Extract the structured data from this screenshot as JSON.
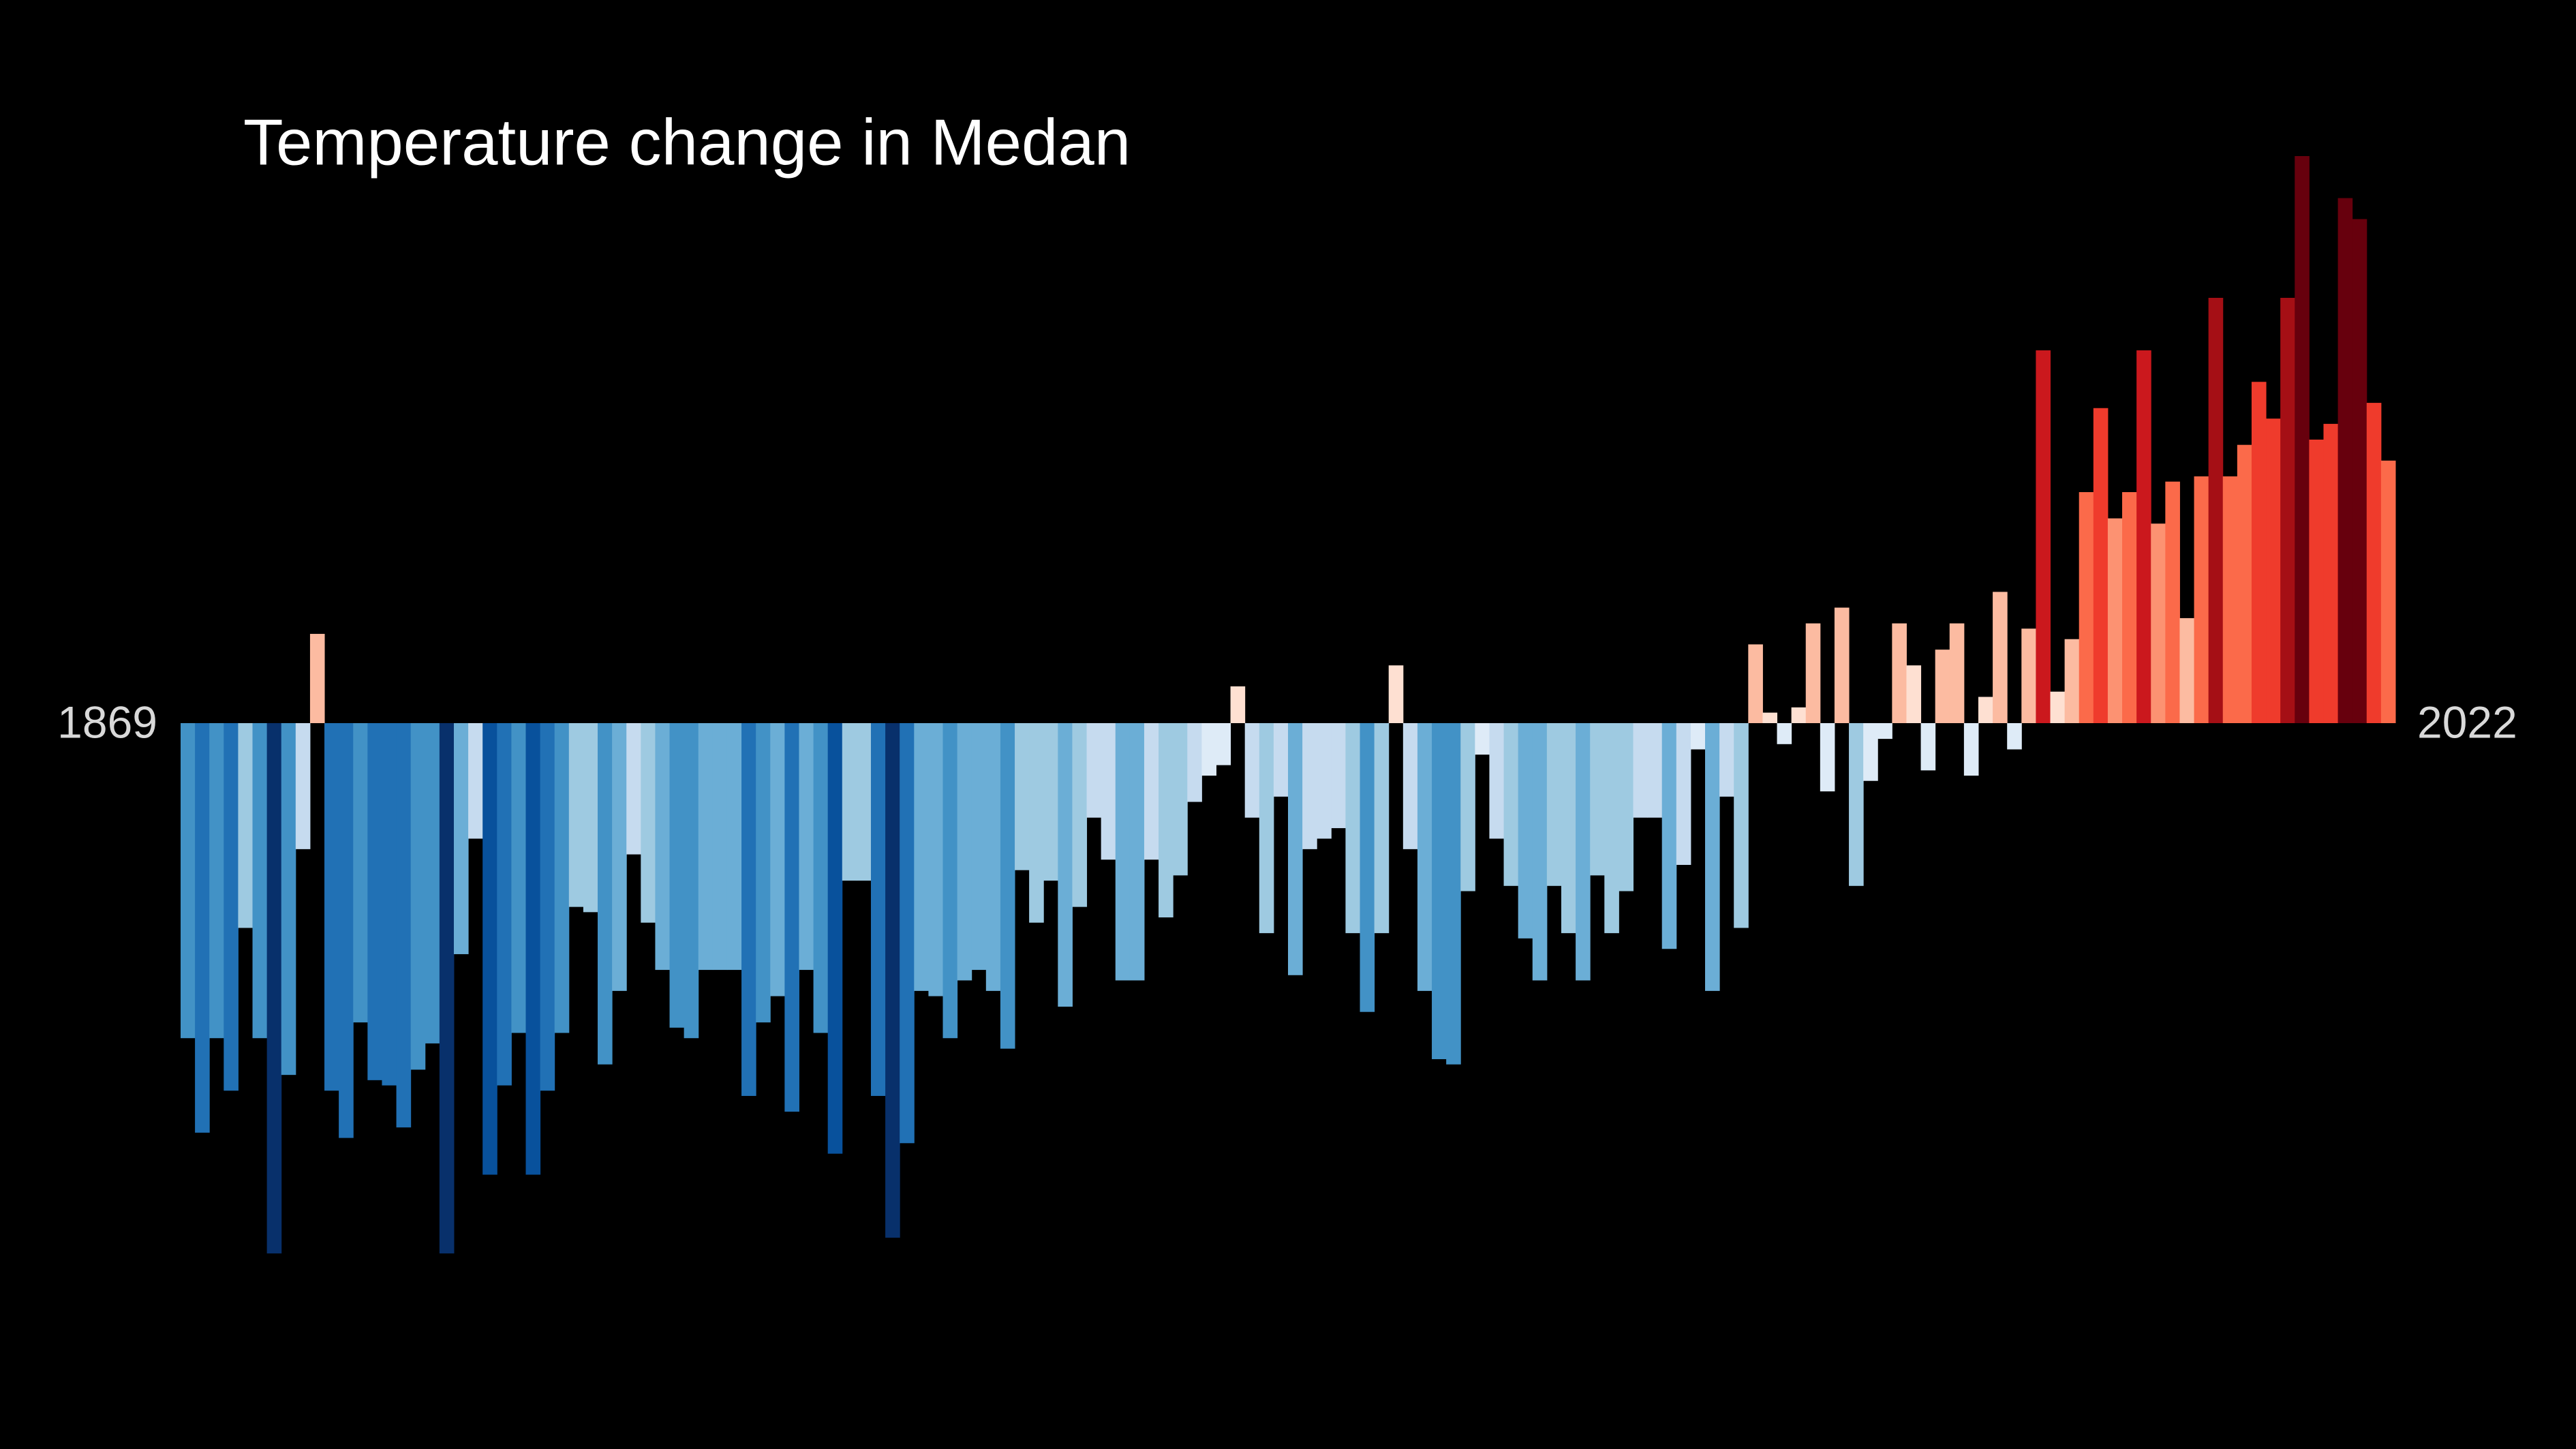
{
  "chart_data": {
    "type": "bar",
    "title": "Temperature change in Medan",
    "categories": [
      "1869",
      null,
      null,
      null,
      null,
      null,
      null,
      null,
      null,
      null,
      null,
      null,
      null,
      null,
      null,
      null,
      null,
      null,
      null,
      null,
      null,
      null,
      null,
      null,
      null,
      null,
      null,
      null,
      null,
      null,
      null,
      null,
      null,
      null,
      null,
      null,
      null,
      null,
      null,
      null,
      null,
      null,
      null,
      null,
      null,
      null,
      null,
      null,
      null,
      null,
      null,
      null,
      null,
      null,
      null,
      null,
      null,
      null,
      null,
      null,
      null,
      null,
      null,
      null,
      null,
      null,
      null,
      null,
      null,
      null,
      null,
      null,
      null,
      null,
      null,
      null,
      null,
      null,
      null,
      null,
      null,
      null,
      null,
      null,
      null,
      null,
      null,
      null,
      null,
      null,
      null,
      null,
      null,
      null,
      null,
      null,
      null,
      null,
      null,
      null,
      null,
      null,
      null,
      null,
      null,
      null,
      null,
      null,
      null,
      null,
      null,
      null,
      null,
      null,
      null,
      null,
      null,
      null,
      null,
      null,
      null,
      null,
      null,
      null,
      null,
      null,
      null,
      null,
      null,
      null,
      null,
      null,
      null,
      null,
      null,
      null,
      null,
      null,
      null,
      null,
      null,
      null,
      null,
      null,
      null,
      null,
      null,
      null,
      null,
      null,
      null,
      null,
      null,
      "2022"
    ],
    "values": [
      -0.6,
      -0.78,
      -0.6,
      -0.7,
      -0.39,
      -0.6,
      -1.01,
      -0.67,
      -0.24,
      0.17,
      -0.7,
      -0.79,
      -0.57,
      -0.68,
      -0.69,
      -0.77,
      -0.66,
      -0.61,
      -1.01,
      -0.44,
      -0.22,
      -0.86,
      -0.69,
      -0.59,
      -0.86,
      -0.7,
      -0.59,
      -0.35,
      -0.36,
      -0.65,
      -0.51,
      -0.25,
      -0.38,
      -0.47,
      -0.58,
      -0.6,
      -0.47,
      -0.47,
      -0.47,
      -0.71,
      -0.57,
      -0.52,
      -0.74,
      -0.47,
      -0.59,
      -0.82,
      -0.3,
      -0.3,
      -0.71,
      -0.98,
      -0.8,
      -0.51,
      -0.52,
      -0.6,
      -0.49,
      -0.47,
      -0.51,
      -0.62,
      -0.28,
      -0.38,
      -0.3,
      -0.54,
      -0.35,
      -0.18,
      -0.26,
      -0.49,
      -0.49,
      -0.26,
      -0.37,
      -0.29,
      -0.15,
      -0.1,
      -0.08,
      0.07,
      -0.18,
      -0.4,
      -0.14,
      -0.48,
      -0.24,
      -0.22,
      -0.2,
      -0.4,
      -0.55,
      -0.4,
      0.11,
      -0.24,
      -0.51,
      -0.64,
      -0.65,
      -0.32,
      -0.06,
      -0.22,
      -0.31,
      -0.41,
      -0.49,
      -0.31,
      -0.4,
      -0.49,
      -0.29,
      -0.4,
      -0.32,
      -0.18,
      -0.18,
      -0.43,
      -0.27,
      -0.05,
      -0.51,
      -0.14,
      -0.39,
      0.15,
      0.02,
      -0.04,
      0.03,
      0.19,
      -0.13,
      0.22,
      -0.31,
      -0.11,
      -0.03,
      0.19,
      0.11,
      -0.09,
      0.14,
      0.19,
      -0.1,
      0.05,
      0.25,
      -0.05,
      0.18,
      0.71,
      0.06,
      0.16,
      0.44,
      0.6,
      0.39,
      0.44,
      0.71,
      0.38,
      0.46,
      0.2,
      0.47,
      0.81,
      0.47,
      0.53,
      0.65,
      0.58,
      0.81,
      1.08,
      0.54,
      0.57,
      1.0,
      0.96,
      0.61,
      0.5
    ],
    "color_scale": [
      "#08306b",
      "#08519c",
      "#2171b5",
      "#4292c6",
      "#6baed6",
      "#9ecae1",
      "#c6dbef",
      "#deebf7",
      "#fee0d2",
      "#fcbba1",
      "#fc9272",
      "#fb6a4a",
      "#ef3b2c",
      "#cb181d",
      "#a50f15",
      "#67000d"
    ]
  }
}
